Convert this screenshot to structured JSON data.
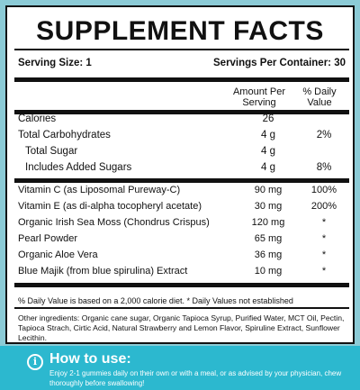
{
  "label": {
    "title": "SUPPLEMENT FACTS",
    "serving_size": "Serving Size: 1",
    "servings_per_container": "Servings Per Container: 30",
    "column_amount": "Amount Per Serving",
    "column_daily_value": "% Daily Value",
    "nutrients": [
      {
        "name": "Calories",
        "amount": "26",
        "dv": ""
      },
      {
        "name": "Total Carbohydrates",
        "amount": "4 g",
        "dv": "2%"
      },
      {
        "name": "Total Sugar",
        "amount": "4 g",
        "dv": ""
      },
      {
        "name": "Includes Added Sugars",
        "amount": "4 g",
        "dv": "8%"
      }
    ],
    "actives": [
      {
        "name": "Vitamin C (as Liposomal Pureway-C)",
        "amount": "90 mg",
        "dv": "100%"
      },
      {
        "name": "Vitamin E (as di-alpha tocopheryl acetate)",
        "amount": "30 mg",
        "dv": "200%"
      },
      {
        "name": "Organic Irish Sea Moss (Chondrus Crispus)",
        "amount": "120 mg",
        "dv": "*"
      },
      {
        "name": "Pearl Powder",
        "amount": "65 mg",
        "dv": "*"
      },
      {
        "name": "Organic Aloe Vera",
        "amount": "36 mg",
        "dv": "*"
      },
      {
        "name": "Blue Majik (from blue spirulina) Extract",
        "amount": "10 mg",
        "dv": "*"
      }
    ],
    "footnote": "% Daily Value is based on a 2,000 calorie diet. * Daily Values not established",
    "other_ingredients": "Other ingredients: Organic cane sugar, Organic Tapioca Syrup, Purified Water, MCT Oil, Pectin, Tapioca Strach, Cirtic Acid, Natural Strawberry and Lemon Flavor, Spiruline Extract, Sunflower Lecithin."
  },
  "how_to_use": {
    "title": "How to use:",
    "text": "Enjoy 2-1 gummies daily on their own or with a meal, or as advised by your physician, chew thoroughly before swallowing!",
    "icon_glyph": "i"
  },
  "colors": {
    "background": "#8ccbd6",
    "banner": "#2cb8cf"
  }
}
